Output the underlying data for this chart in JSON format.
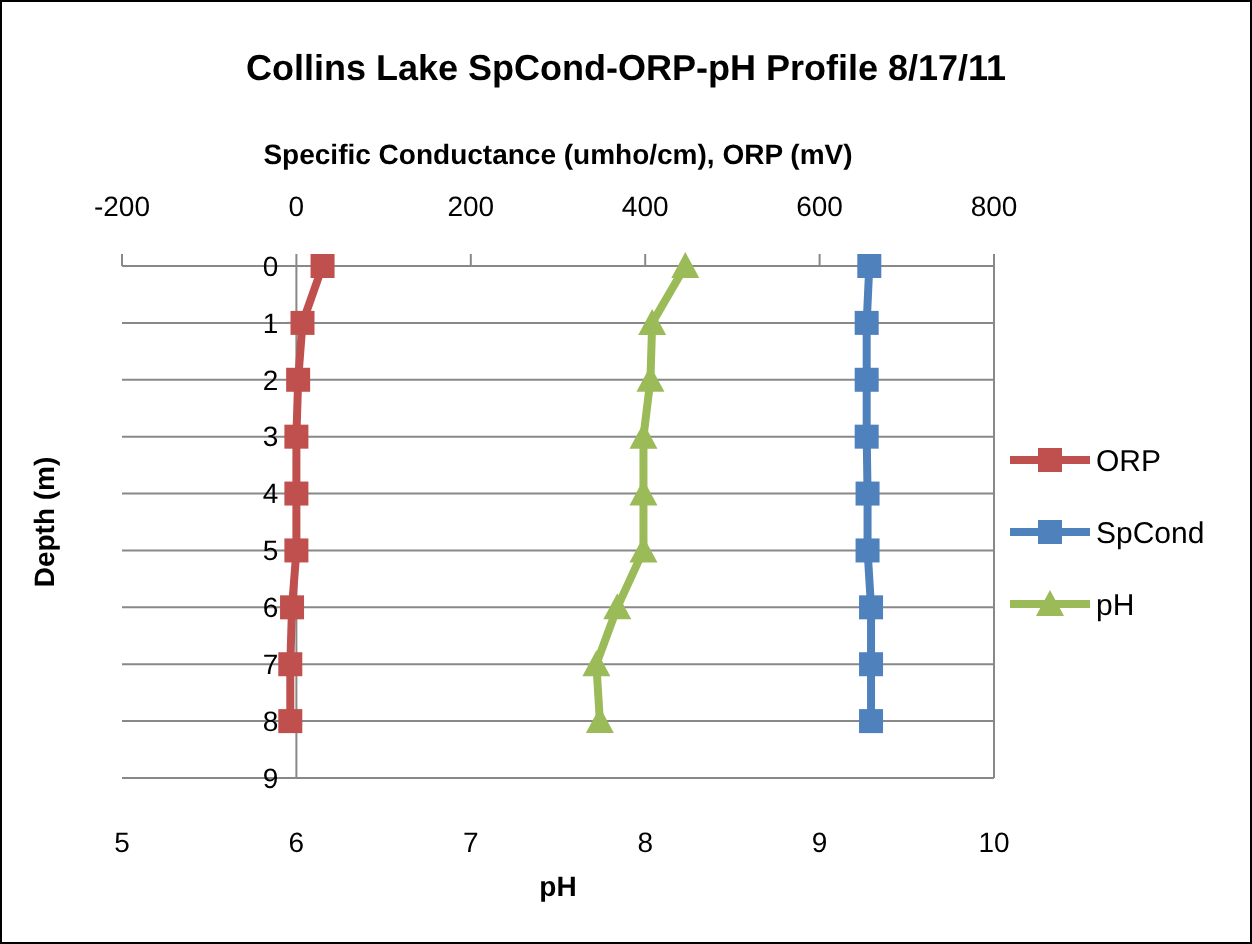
{
  "chart_data": {
    "type": "line",
    "title": "Collins Lake SpCond-ORP-pH Profile 8/17/11",
    "x2label": "Specific Conductance (umho/cm), ORP (mV)",
    "xlabel": "pH",
    "ylabel": "Depth (m)",
    "orientation": "horizontal",
    "x": [
      0,
      1,
      2,
      3,
      4,
      5,
      6,
      7,
      8
    ],
    "series": [
      {
        "name": "ORP",
        "color": "#c0504d",
        "axis": "x2",
        "marker": "square",
        "values": [
          30,
          7,
          2,
          0,
          0,
          0,
          -5,
          -7,
          -7
        ]
      },
      {
        "name": "SpCond",
        "color": "#4f81bd",
        "axis": "x2",
        "marker": "square",
        "values": [
          657,
          654,
          654,
          654,
          655,
          655,
          659,
          659,
          659
        ]
      },
      {
        "name": "pH",
        "color": "#9bbb59",
        "marker": "triangle",
        "values": [
          8.23,
          8.04,
          8.03,
          7.99,
          7.99,
          7.99,
          7.84,
          7.72,
          7.74
        ]
      }
    ],
    "ylim": [
      9,
      0
    ],
    "yticks": [
      0,
      1,
      2,
      3,
      4,
      5,
      6,
      7,
      8,
      9
    ],
    "xlim": [
      5,
      10
    ],
    "xticks": [
      5,
      6,
      7,
      8,
      9,
      10
    ],
    "x2lim": [
      -200,
      800
    ],
    "x2ticks": [
      -200,
      0,
      200,
      400,
      600,
      800
    ],
    "grid": "y",
    "legend": "right",
    "line_style": "solid"
  }
}
